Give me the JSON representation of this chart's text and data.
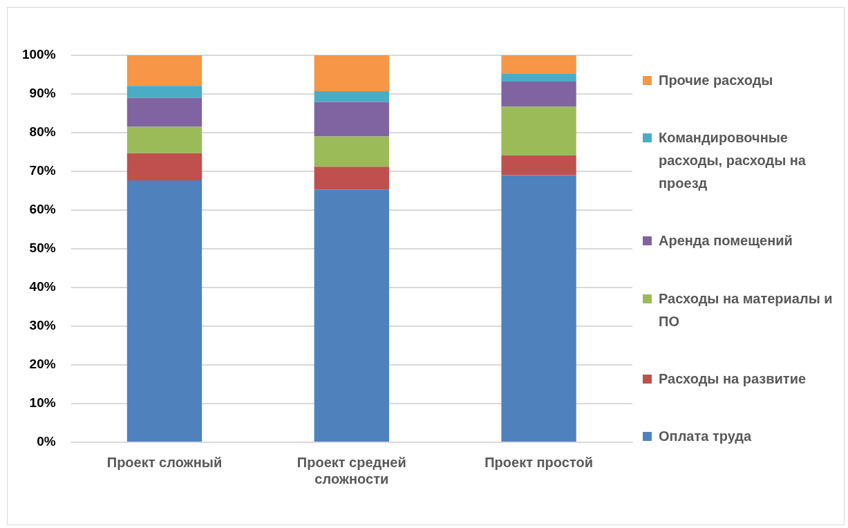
{
  "chart_data": {
    "type": "bar",
    "stacked": true,
    "categories": [
      "Проект сложный",
      "Проект средней сложности",
      "Проект простой"
    ],
    "series": [
      {
        "name": "Оплата труда",
        "color": "#4f81bd",
        "values": [
          67.7,
          65.3,
          69.0
        ]
      },
      {
        "name": "Расходы на развитие",
        "color": "#c0504d",
        "values": [
          7.0,
          5.9,
          5.1
        ]
      },
      {
        "name": "Расходы на материалы и ПО",
        "color": "#9bbb59",
        "values": [
          6.8,
          7.8,
          12.6
        ]
      },
      {
        "name": "Аренда  помещений",
        "color": "#8064a2",
        "values": [
          7.5,
          8.9,
          6.5
        ]
      },
      {
        "name": "Командировочные расходы, расходы на проезд",
        "color": "#4bacc6",
        "values": [
          3.1,
          2.8,
          2.1
        ]
      },
      {
        "name": "Прочие расходы",
        "color": "#f79646",
        "values": [
          7.9,
          9.3,
          4.7
        ]
      }
    ],
    "ylim": [
      0,
      100
    ],
    "yticks": [
      {
        "value": 0,
        "label": "0%"
      },
      {
        "value": 10,
        "label": "10%"
      },
      {
        "value": 20,
        "label": "20%"
      },
      {
        "value": 30,
        "label": "30%"
      },
      {
        "value": 40,
        "label": "40%"
      },
      {
        "value": 50,
        "label": "50%"
      },
      {
        "value": 60,
        "label": "60%"
      },
      {
        "value": 70,
        "label": "70%"
      },
      {
        "value": 80,
        "label": "80%"
      },
      {
        "value": 90,
        "label": "90%"
      },
      {
        "value": 100,
        "label": "100%"
      }
    ],
    "grid": "y",
    "legend": "right"
  }
}
